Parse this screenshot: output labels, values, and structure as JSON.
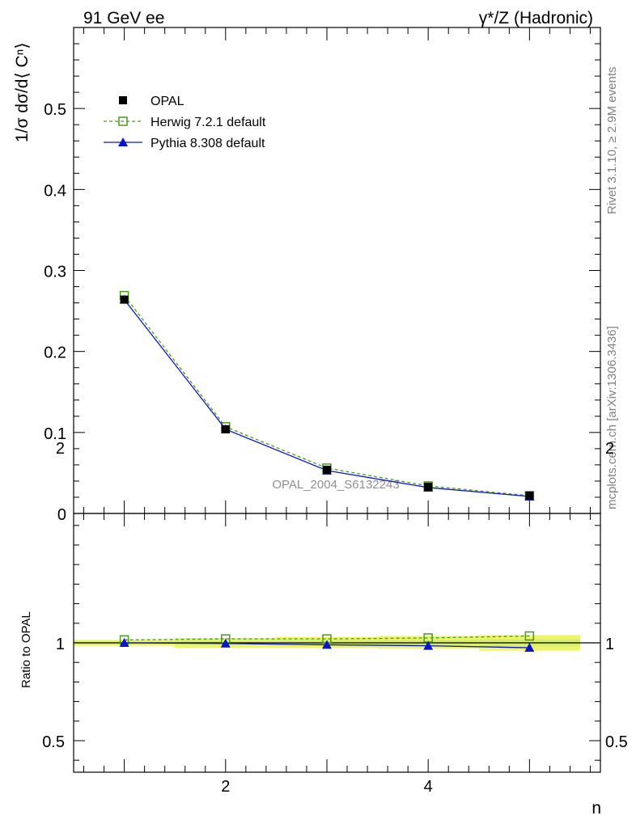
{
  "header": {
    "left": "91 GeV ee",
    "right": "γ*/Z (Hadronic)"
  },
  "side_labels": {
    "rivet": "Rivet 3.1.10, ≥ 2.9M events",
    "mcplots": "mcplots.cern.ch [arXiv:1306.3436]"
  },
  "watermark": "OPAL_2004_S6132243",
  "chart_data": [
    {
      "type": "line",
      "panel": "main",
      "ylabel": "1/σ dσ/d⟨ Cⁿ⟩",
      "xlabel": "",
      "xlim": [
        0.5,
        5.7
      ],
      "ylim": [
        0,
        0.6
      ],
      "y_ticks": [
        0,
        0.1,
        0.2,
        0.3,
        0.4,
        0.5
      ],
      "y_tick_labels": [
        "0",
        "0.1",
        "0.2",
        "0.3",
        "0.4",
        "0.5"
      ],
      "x": [
        1,
        2,
        3,
        4,
        5
      ],
      "legend_position": "top-left",
      "series": [
        {
          "name": "OPAL",
          "values": [
            0.264,
            0.104,
            0.054,
            0.033,
            0.022
          ],
          "color": "#000000",
          "marker": "filled-square",
          "line": "none"
        },
        {
          "name": "Herwig 7.2.1 default",
          "values": [
            0.269,
            0.107,
            0.056,
            0.034,
            0.022
          ],
          "color": "#4a9a1a",
          "marker": "open-square",
          "line": "dashed"
        },
        {
          "name": "Pythia 8.308 default",
          "values": [
            0.264,
            0.104,
            0.053,
            0.032,
            0.021
          ],
          "color": "#0a14c8",
          "marker": "filled-triangle",
          "line": "solid"
        }
      ]
    },
    {
      "type": "line",
      "panel": "ratio",
      "ylabel": "Ratio to OPAL",
      "xlabel": "n",
      "xlim": [
        0.5,
        5.7
      ],
      "ylim": [
        0.35,
        2.25
      ],
      "y_ticks": [
        0.5,
        1,
        2
      ],
      "y_tick_labels": [
        "0.5",
        "1",
        "2"
      ],
      "x_ticks": [
        2,
        4
      ],
      "x_tick_labels": [
        "2",
        "4"
      ],
      "x": [
        1,
        2,
        3,
        4,
        5
      ],
      "band": {
        "lower": [
          0.985,
          0.975,
          0.975,
          0.97,
          0.96
        ],
        "upper": [
          1.015,
          1.025,
          1.03,
          1.035,
          1.04
        ],
        "color": "#eef56a"
      },
      "series": [
        {
          "name": "Herwig 7.2.1 default",
          "values": [
            1.015,
            1.02,
            1.02,
            1.025,
            1.035
          ],
          "color": "#4a9a1a",
          "marker": "open-square",
          "line": "dashed"
        },
        {
          "name": "Pythia 8.308 default",
          "values": [
            1.0,
            0.997,
            0.99,
            0.985,
            0.975
          ],
          "color": "#0a14c8",
          "marker": "filled-triangle",
          "line": "solid"
        }
      ]
    }
  ]
}
